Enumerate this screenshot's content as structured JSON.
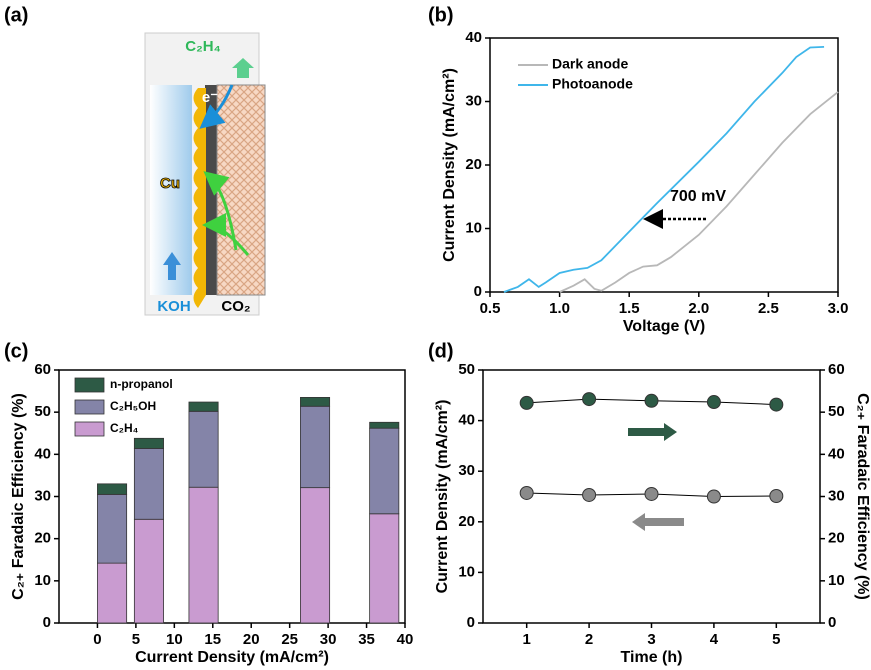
{
  "panel_labels": [
    "(a)",
    "(b)",
    "(c)",
    "(d)"
  ],
  "diagram": {
    "product": "C₂H₄",
    "electron": "e⁻",
    "catalyst": "Cu",
    "electrolyte": "KOH",
    "gas": "CO₂"
  },
  "chart_data": [
    {
      "type": "line",
      "xlabel": "Voltage (V)",
      "ylabel": "Current  Density (mA/cm²)",
      "xlim": [
        0.5,
        3.0
      ],
      "ylim": [
        0,
        40
      ],
      "xticks": [
        0.5,
        {
          "value": 1,
          "label": "1.0"
        },
        1.5,
        {
          "value": 2,
          "label": "2.0"
        },
        2.5,
        {
          "value": 3,
          "label": "3.0"
        }
      ],
      "yticks": [
        0,
        10,
        20,
        30,
        40
      ],
      "legend": "top-left",
      "annotation": "700 mV",
      "series": [
        {
          "name": "Dark anode",
          "color": "#b8b8b8",
          "x": [
            1.0,
            1.1,
            1.18,
            1.25,
            1.3,
            1.4,
            1.5,
            1.6,
            1.7,
            1.8,
            2.0,
            2.2,
            2.4,
            2.6,
            2.8,
            3.0
          ],
          "values": [
            0,
            1.0,
            2.0,
            0.5,
            0.2,
            1.5,
            3,
            4,
            4.2,
            5.5,
            9,
            13.5,
            18.5,
            23.5,
            28,
            31.5
          ]
        },
        {
          "name": "Photoanode",
          "color": "#3fb6ea",
          "x": [
            0.6,
            0.7,
            0.78,
            0.85,
            0.9,
            1.0,
            1.1,
            1.2,
            1.3,
            1.5,
            1.7,
            2.0,
            2.2,
            2.4,
            2.6,
            2.7,
            2.8,
            2.9
          ],
          "values": [
            0,
            0.8,
            2.0,
            0.8,
            1.5,
            3,
            3.5,
            3.8,
            5,
            9.5,
            14,
            20.5,
            25,
            30,
            34.5,
            37,
            38.5,
            38.6
          ]
        }
      ]
    },
    {
      "type": "bar",
      "stacked": true,
      "xlabel": "Current Density (mA/cm²)",
      "ylabel": "C₂₊ Faradaic Efficiency (%)",
      "xlim": [
        -5,
        40
      ],
      "ylim": [
        0,
        60
      ],
      "xticks": [
        0,
        5,
        10,
        15,
        20,
        25,
        30,
        35,
        40
      ],
      "yticks": [
        0,
        10,
        20,
        30,
        40,
        50,
        60
      ],
      "legend": "top-left",
      "x": [
        1.9,
        6.7,
        13.8,
        28.3,
        37.3
      ],
      "series": [
        {
          "name": "C₂H₄",
          "color": "#c99bd0",
          "values": [
            14.2,
            24.6,
            32.2,
            32.1,
            25.9
          ]
        },
        {
          "name": "C₂H₅OH",
          "color": "#8484a8",
          "values": [
            16.3,
            16.8,
            18.0,
            19.3,
            20.3
          ]
        },
        {
          "name": "n-propanol",
          "color": "#2d5a45",
          "values": [
            2.5,
            2.4,
            2.2,
            2.1,
            1.4
          ]
        }
      ]
    },
    {
      "type": "line",
      "markers": true,
      "xlabel": "Time (h)",
      "ylabel": "Current  Density (mA/cm²)",
      "y2label": "C₂₊ Faradaic Efficiency (%)",
      "xlim": [
        0.3,
        5.7
      ],
      "ylim": [
        0,
        50
      ],
      "y2lim": [
        0,
        60
      ],
      "xticks": [
        1,
        2,
        3,
        4,
        5
      ],
      "yticks": [
        0,
        10,
        20,
        30,
        40,
        50
      ],
      "y2ticks": [
        0,
        10,
        20,
        30,
        40,
        50,
        60
      ],
      "x": [
        1,
        2,
        3,
        4,
        5
      ],
      "series": [
        {
          "color": "#2d5a45",
          "axis": "y2",
          "values": [
            52.2,
            53.1,
            52.7,
            52.4,
            51.8
          ]
        },
        {
          "color": "#8a8a8a",
          "values": [
            25.7,
            25.3,
            25.5,
            25.0,
            25.1
          ]
        }
      ]
    }
  ]
}
